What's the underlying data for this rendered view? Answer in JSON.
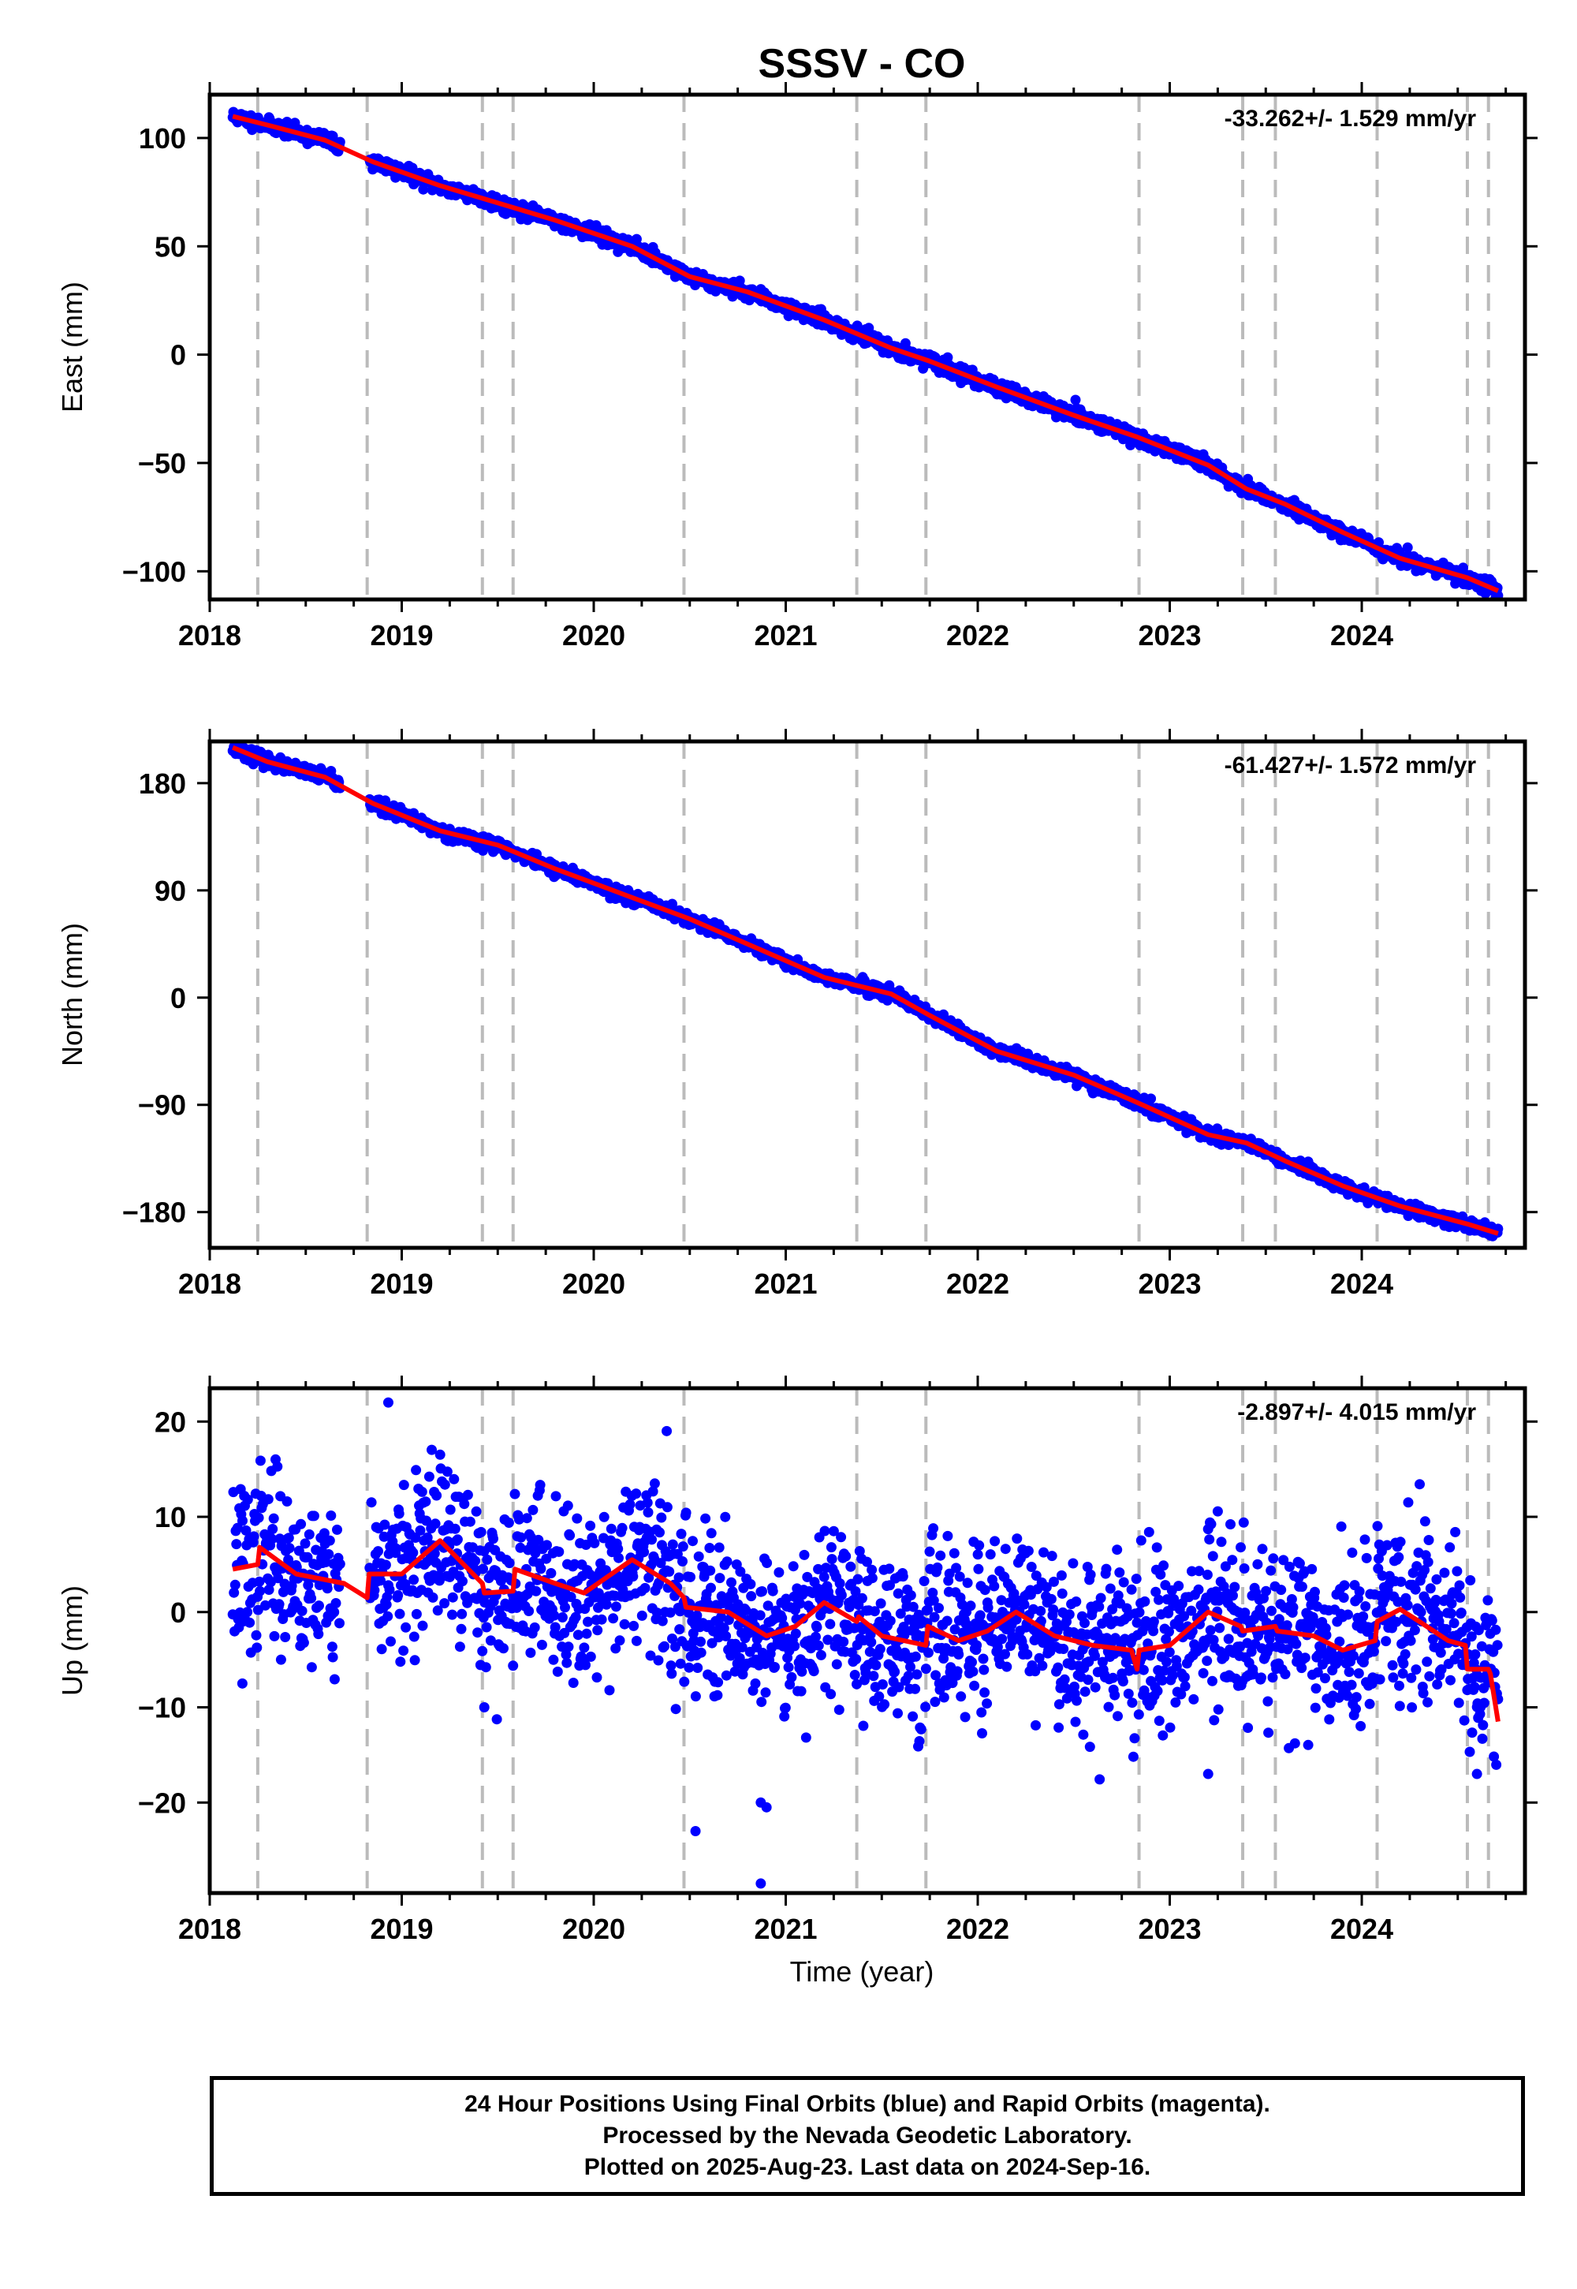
{
  "title": "SSSV - CO",
  "colors": {
    "points": "#0000ff",
    "fit": "#ff0000",
    "events": "#bbbbbb",
    "frame": "#000000"
  },
  "chart_data": [
    {
      "type": "scatter",
      "panel": "east",
      "ylabel": "East (mm)",
      "xlim": [
        2018.0,
        2024.85
      ],
      "ylim": [
        -113,
        120
      ],
      "yticks": [
        100,
        50,
        0,
        -50,
        -100
      ],
      "yticklabels": [
        "100",
        "50",
        "0",
        "−50",
        "−100"
      ],
      "xticks": [
        2018,
        2019,
        2020,
        2021,
        2022,
        2023,
        2024
      ],
      "xticklabels": [
        "2018",
        "2019",
        "2020",
        "2021",
        "2022",
        "2023",
        "2024"
      ],
      "rate": "-33.262+/- 1.529 mm/yr",
      "series": [
        {
          "type": "line",
          "x": [
            2018.12,
            2018.3,
            2018.6,
            2018.85,
            2019.2,
            2019.5,
            2019.8,
            2020.2,
            2020.5,
            2020.8,
            2021.2,
            2021.55,
            2021.75,
            2022.1,
            2022.5,
            2022.83,
            2023.2,
            2023.4,
            2023.6,
            2023.9,
            2024.2,
            2024.55,
            2024.71
          ],
          "y": [
            110,
            106,
            99,
            89,
            78,
            70,
            62,
            50,
            36,
            29,
            16,
            3,
            -3,
            -15,
            -28,
            -38,
            -51,
            -62,
            -69,
            -82,
            -94,
            -103,
            -109
          ]
        }
      ],
      "scatter_seed": 11,
      "scatter_noise": 1.6,
      "scatter_gaps": [
        [
          2018.68,
          2018.83
        ]
      ]
    },
    {
      "type": "scatter",
      "panel": "north",
      "ylabel": "North (mm)",
      "xlim": [
        2018.0,
        2024.85
      ],
      "ylim": [
        -210,
        215
      ],
      "yticks": [
        180,
        90,
        0,
        -90,
        -180
      ],
      "yticklabels": [
        "180",
        "90",
        "0",
        "−90",
        "−180"
      ],
      "xticks": [
        2018,
        2019,
        2020,
        2021,
        2022,
        2023,
        2024
      ],
      "xticklabels": [
        "2018",
        "2019",
        "2020",
        "2021",
        "2022",
        "2023",
        "2024"
      ],
      "rate": "-61.427+/- 1.572 mm/yr",
      "series": [
        {
          "type": "line",
          "x": [
            2018.12,
            2018.3,
            2018.6,
            2018.85,
            2019.2,
            2019.5,
            2019.8,
            2020.2,
            2020.5,
            2020.8,
            2021.2,
            2021.55,
            2021.75,
            2022.1,
            2022.5,
            2022.83,
            2023.2,
            2023.4,
            2023.6,
            2023.9,
            2024.2,
            2024.55,
            2024.71
          ],
          "y": [
            210,
            198,
            185,
            163,
            140,
            128,
            108,
            84,
            66,
            45,
            17,
            3,
            -15,
            -45,
            -65,
            -88,
            -115,
            -122,
            -137,
            -158,
            -175,
            -190,
            -198
          ]
        }
      ],
      "scatter_seed": 23,
      "scatter_noise": 2.6,
      "scatter_gaps": [
        [
          2018.68,
          2018.83
        ]
      ]
    },
    {
      "type": "scatter",
      "panel": "up",
      "ylabel": "Up (mm)",
      "xlabel": "Time (year)",
      "xlim": [
        2018.0,
        2024.85
      ],
      "ylim": [
        -29.5,
        23.5
      ],
      "yticks": [
        20,
        10,
        0,
        -10,
        -20
      ],
      "yticklabels": [
        "20",
        "10",
        "0",
        "−10",
        "−20"
      ],
      "xticks": [
        2018,
        2019,
        2020,
        2021,
        2022,
        2023,
        2024
      ],
      "xticklabels": [
        "2018",
        "2019",
        "2020",
        "2021",
        "2022",
        "2023",
        "2024"
      ],
      "rate": "-2.897+/- 4.015 mm/yr",
      "series": [
        {
          "type": "line",
          "x": [
            2018.12,
            2018.25,
            2018.26,
            2018.45,
            2018.7,
            2018.82,
            2018.83,
            2019.0,
            2019.2,
            2019.42,
            2019.43,
            2019.58,
            2019.59,
            2019.8,
            2019.95,
            2020.2,
            2020.4,
            2020.47,
            2020.48,
            2020.7,
            2020.9,
            2021.05,
            2021.2,
            2021.37,
            2021.38,
            2021.5,
            2021.73,
            2021.74,
            2021.9,
            2022.05,
            2022.2,
            2022.4,
            2022.6,
            2022.8,
            2022.83,
            2022.84,
            2023.0,
            2023.2,
            2023.37,
            2023.38,
            2023.55,
            2023.56,
            2023.75,
            2023.9,
            2024.07,
            2024.08,
            2024.2,
            2024.3,
            2024.45,
            2024.54,
            2024.55,
            2024.66,
            2024.67,
            2024.71
          ],
          "y": [
            4.5,
            5,
            6.8,
            4,
            3,
            1.5,
            4,
            4,
            7.5,
            3,
            2,
            2.2,
            4.5,
            3,
            2,
            5.5,
            3,
            1.5,
            0.5,
            0,
            -2.5,
            -1.5,
            1,
            -1,
            -0.5,
            -2.5,
            -3.5,
            -1.5,
            -3,
            -2,
            0,
            -2.5,
            -3.5,
            -4,
            -6,
            -4,
            -3.5,
            0,
            -1.5,
            -2,
            -1.5,
            -2,
            -2.5,
            -4,
            -3,
            -1,
            0.3,
            -1,
            -3,
            -3.5,
            -6,
            -6,
            -6.5,
            -11.5
          ]
        }
      ],
      "scatter_seed": 37,
      "scatter_noise": 4.3,
      "scatter_gaps": [
        [
          2018.68,
          2018.83
        ]
      ],
      "outliers": [
        {
          "x": 2018.93,
          "y": 22
        },
        {
          "x": 2020.38,
          "y": 19
        },
        {
          "x": 2020.53,
          "y": -23
        },
        {
          "x": 2020.87,
          "y": -20
        },
        {
          "x": 2020.9,
          "y": -20.5
        },
        {
          "x": 2020.87,
          "y": -28.5
        },
        {
          "x": 2018.17,
          "y": -7.5
        },
        {
          "x": 2019.43,
          "y": -10
        },
        {
          "x": 2023.2,
          "y": -17
        },
        {
          "x": 2024.6,
          "y": -17
        }
      ]
    }
  ],
  "event_lines": [
    2018.25,
    2018.82,
    2019.42,
    2019.58,
    2020.47,
    2021.37,
    2021.73,
    2022.84,
    2023.38,
    2023.55,
    2024.08,
    2024.55,
    2024.66
  ],
  "footer": {
    "line1": "24 Hour Positions Using Final Orbits (blue) and Rapid Orbits (magenta).",
    "line2": "Processed by the Nevada Geodetic Laboratory.",
    "line3": "Plotted on 2025-Aug-23. Last data on 2024-Sep-16."
  }
}
